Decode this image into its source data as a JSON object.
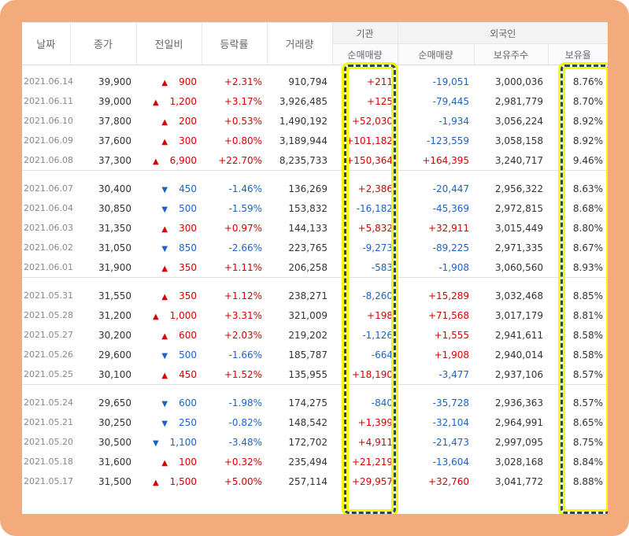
{
  "header": {
    "date": "날짜",
    "close": "종가",
    "diff": "전일비",
    "rate": "등락률",
    "volume": "거래량",
    "institution": "기관",
    "foreign": "외국인",
    "inst_net": "순매매량",
    "foreign_net": "순매매량",
    "foreign_hold": "보유주수",
    "foreign_ratio": "보유율"
  },
  "colors": {
    "up": "#d60000",
    "down": "#1c62c4",
    "frame": "#f3ab7d",
    "highlight": "#f4f70f"
  },
  "groups": [
    [
      {
        "date": "2021.06.14",
        "close": "39,900",
        "dir": "up",
        "diff": "900",
        "rate": "+2.31%",
        "volume": "910,794",
        "inst": "+211",
        "fnet": "-19,051",
        "fhold": "3,000,036",
        "fratio": "8.76%"
      },
      {
        "date": "2021.06.11",
        "close": "39,000",
        "dir": "up",
        "diff": "1,200",
        "rate": "+3.17%",
        "volume": "3,926,485",
        "inst": "+125",
        "fnet": "-79,445",
        "fhold": "2,981,779",
        "fratio": "8.70%"
      },
      {
        "date": "2021.06.10",
        "close": "37,800",
        "dir": "up",
        "diff": "200",
        "rate": "+0.53%",
        "volume": "1,490,192",
        "inst": "+52,030",
        "fnet": "-1,934",
        "fhold": "3,056,224",
        "fratio": "8.92%"
      },
      {
        "date": "2021.06.09",
        "close": "37,600",
        "dir": "up",
        "diff": "300",
        "rate": "+0.80%",
        "volume": "3,189,944",
        "inst": "+101,182",
        "fnet": "-123,559",
        "fhold": "3,058,158",
        "fratio": "8.92%"
      },
      {
        "date": "2021.06.08",
        "close": "37,300",
        "dir": "up",
        "diff": "6,900",
        "rate": "+22.70%",
        "volume": "8,235,733",
        "inst": "+150,364",
        "fnet": "+164,395",
        "fhold": "3,240,717",
        "fratio": "9.46%"
      }
    ],
    [
      {
        "date": "2021.06.07",
        "close": "30,400",
        "dir": "down",
        "diff": "450",
        "rate": "-1.46%",
        "volume": "136,269",
        "inst": "+2,386",
        "fnet": "-20,447",
        "fhold": "2,956,322",
        "fratio": "8.63%"
      },
      {
        "date": "2021.06.04",
        "close": "30,850",
        "dir": "down",
        "diff": "500",
        "rate": "-1.59%",
        "volume": "153,832",
        "inst": "-16,182",
        "fnet": "-45,369",
        "fhold": "2,972,815",
        "fratio": "8.68%"
      },
      {
        "date": "2021.06.03",
        "close": "31,350",
        "dir": "up",
        "diff": "300",
        "rate": "+0.97%",
        "volume": "144,133",
        "inst": "+5,832",
        "fnet": "+32,911",
        "fhold": "3,015,449",
        "fratio": "8.80%"
      },
      {
        "date": "2021.06.02",
        "close": "31,050",
        "dir": "down",
        "diff": "850",
        "rate": "-2.66%",
        "volume": "223,765",
        "inst": "-9,273",
        "fnet": "-89,225",
        "fhold": "2,971,335",
        "fratio": "8.67%"
      },
      {
        "date": "2021.06.01",
        "close": "31,900",
        "dir": "up",
        "diff": "350",
        "rate": "+1.11%",
        "volume": "206,258",
        "inst": "-583",
        "fnet": "-1,908",
        "fhold": "3,060,560",
        "fratio": "8.93%"
      }
    ],
    [
      {
        "date": "2021.05.31",
        "close": "31,550",
        "dir": "up",
        "diff": "350",
        "rate": "+1.12%",
        "volume": "238,271",
        "inst": "-8,260",
        "fnet": "+15,289",
        "fhold": "3,032,468",
        "fratio": "8.85%"
      },
      {
        "date": "2021.05.28",
        "close": "31,200",
        "dir": "up",
        "diff": "1,000",
        "rate": "+3.31%",
        "volume": "321,009",
        "inst": "+198",
        "fnet": "+71,568",
        "fhold": "3,017,179",
        "fratio": "8.81%"
      },
      {
        "date": "2021.05.27",
        "close": "30,200",
        "dir": "up",
        "diff": "600",
        "rate": "+2.03%",
        "volume": "219,202",
        "inst": "-1,126",
        "fnet": "+1,555",
        "fhold": "2,941,611",
        "fratio": "8.58%"
      },
      {
        "date": "2021.05.26",
        "close": "29,600",
        "dir": "down",
        "diff": "500",
        "rate": "-1.66%",
        "volume": "185,787",
        "inst": "-664",
        "fnet": "+1,908",
        "fhold": "2,940,014",
        "fratio": "8.58%"
      },
      {
        "date": "2021.05.25",
        "close": "30,100",
        "dir": "up",
        "diff": "450",
        "rate": "+1.52%",
        "volume": "135,955",
        "inst": "+18,190",
        "fnet": "-3,477",
        "fhold": "2,937,106",
        "fratio": "8.57%"
      }
    ],
    [
      {
        "date": "2021.05.24",
        "close": "29,650",
        "dir": "down",
        "diff": "600",
        "rate": "-1.98%",
        "volume": "174,275",
        "inst": "-840",
        "fnet": "-35,728",
        "fhold": "2,936,363",
        "fratio": "8.57%"
      },
      {
        "date": "2021.05.21",
        "close": "30,250",
        "dir": "down",
        "diff": "250",
        "rate": "-0.82%",
        "volume": "148,542",
        "inst": "+1,399",
        "fnet": "-32,104",
        "fhold": "2,964,991",
        "fratio": "8.65%"
      },
      {
        "date": "2021.05.20",
        "close": "30,500",
        "dir": "down",
        "diff": "1,100",
        "rate": "-3.48%",
        "volume": "172,702",
        "inst": "+4,911",
        "fnet": "-21,473",
        "fhold": "2,997,095",
        "fratio": "8.75%"
      },
      {
        "date": "2021.05.18",
        "close": "31,600",
        "dir": "up",
        "diff": "100",
        "rate": "+0.32%",
        "volume": "235,494",
        "inst": "+21,219",
        "fnet": "-13,604",
        "fhold": "3,028,168",
        "fratio": "8.84%"
      },
      {
        "date": "2021.05.17",
        "close": "31,500",
        "dir": "up",
        "diff": "1,500",
        "rate": "+5.00%",
        "volume": "257,114",
        "inst": "+29,957",
        "fnet": "+32,760",
        "fhold": "3,041,772",
        "fratio": "8.88%"
      }
    ]
  ]
}
